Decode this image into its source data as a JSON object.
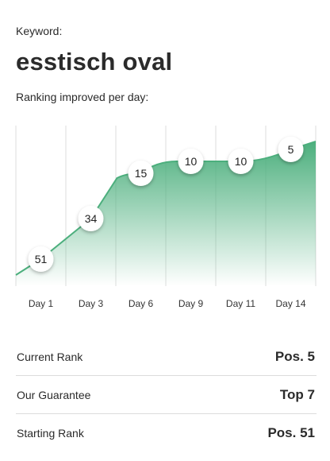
{
  "keyword_label": "Keyword:",
  "keyword": "esstisch oval",
  "chart_subtitle": "Ranking improved per day:",
  "chart_data": {
    "type": "area",
    "title": "",
    "x": [
      1,
      3,
      6,
      9,
      11,
      14
    ],
    "categories": [
      "Day 1",
      "Day 3",
      "Day 6",
      "Day 9",
      "Day 11",
      "Day 14"
    ],
    "series": [
      {
        "values": [
          51,
          34,
          15,
          10,
          10,
          5
        ]
      }
    ],
    "y_inverted": true,
    "grid": true,
    "accent_color": "#4caf7d"
  },
  "stats": [
    {
      "label": "Current Rank",
      "value": "Pos. 5"
    },
    {
      "label": "Our Guarantee",
      "value": "Top 7"
    },
    {
      "label": "Starting Rank",
      "value": "Pos. 51"
    }
  ]
}
